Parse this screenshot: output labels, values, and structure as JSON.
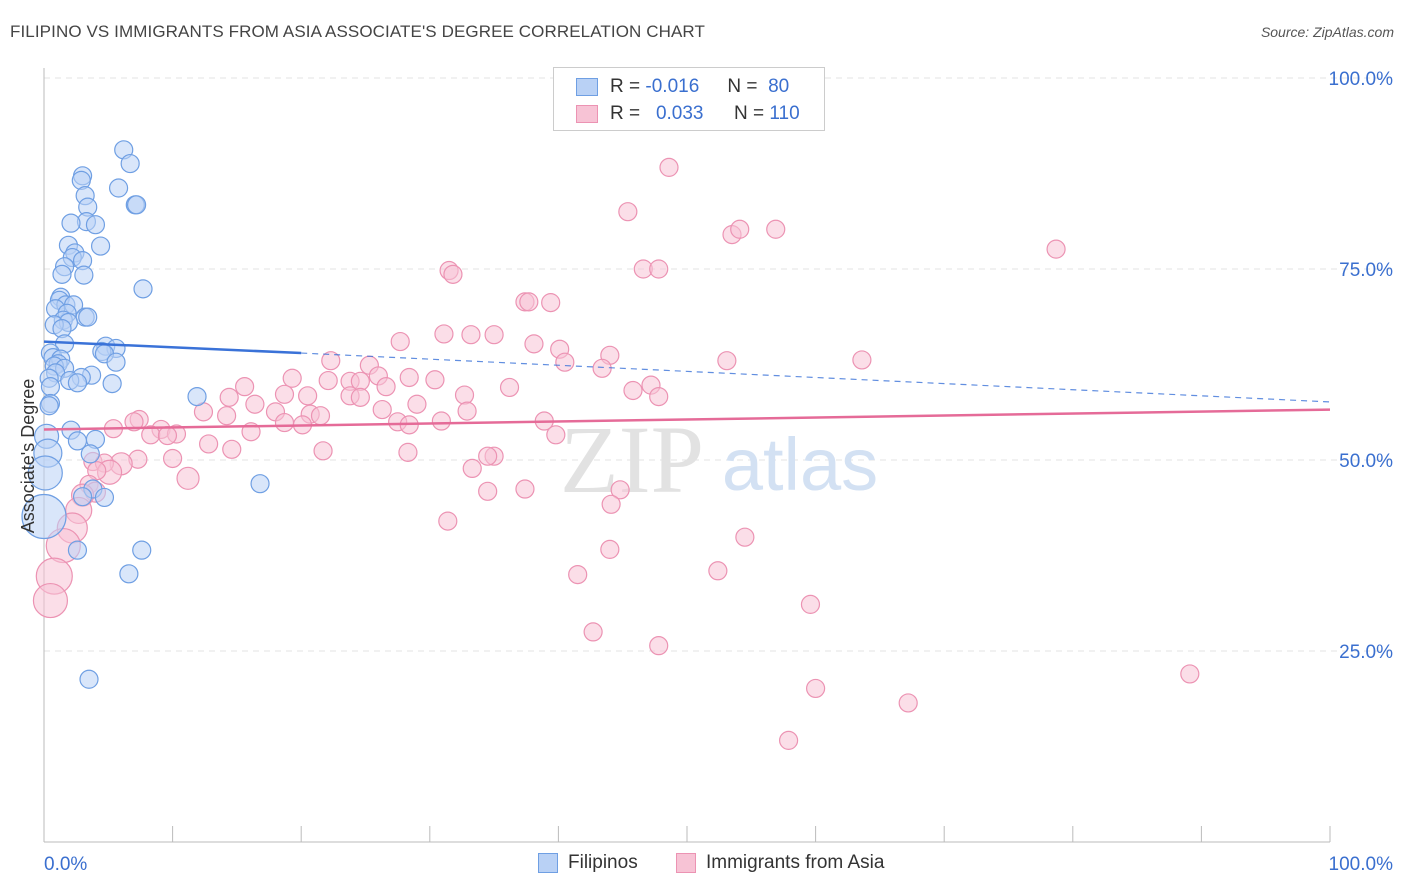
{
  "title": "FILIPINO VS IMMIGRANTS FROM ASIA ASSOCIATE'S DEGREE CORRELATION CHART",
  "source": "Source: ZipAtlas.com",
  "watermark": {
    "zip": "ZIP",
    "atlas": "atlas"
  },
  "legend": {
    "rows": [
      {
        "r_label": "R =",
        "r_value": "-0.016",
        "n_label": "N =",
        "n_value": "80"
      },
      {
        "r_label": "R =",
        "r_value": "0.033",
        "n_label": "N =",
        "n_value": "110"
      }
    ]
  },
  "colors": {
    "blue": "#3a72d8",
    "blue_fill": "#b9d1f5",
    "blue_stroke": "#6f9fe3",
    "pink": "#e56b98",
    "pink_fill": "#f7c3d5",
    "pink_stroke": "#ec93b3",
    "axis_text": "#3a6fcf",
    "grid": "#e3e3e3"
  },
  "chart_data": {
    "type": "scatter",
    "title": "FILIPINO VS IMMIGRANTS FROM ASIA ASSOCIATE'S DEGREE CORRELATION CHART",
    "xlabel": "",
    "ylabel": "Associate's Degree",
    "xlim": [
      0,
      100
    ],
    "ylim": [
      0,
      100
    ],
    "x_tick_labels": [
      "0.0%",
      "100.0%"
    ],
    "y_tick_labels": [
      "25.0%",
      "50.0%",
      "75.0%",
      "100.0%"
    ],
    "y_ticks": [
      25,
      50,
      75,
      100
    ],
    "series": [
      {
        "name": "Filipinos",
        "color": "#3a72d8",
        "trend": {
          "x0": 0,
          "y0": 65.5,
          "x1": 20,
          "y1": 64.0,
          "dash_to_x": 100,
          "dash_to_y": 57.6
        },
        "points": [
          [
            6.2,
            90.6
          ],
          [
            6.7,
            88.8
          ],
          [
            3.0,
            87.2
          ],
          [
            2.9,
            86.6
          ],
          [
            5.8,
            85.6
          ],
          [
            3.2,
            84.6
          ],
          [
            7.1,
            83.4
          ],
          [
            7.2,
            83.4
          ],
          [
            3.4,
            83.1
          ],
          [
            3.3,
            81.2
          ],
          [
            2.1,
            81.0
          ],
          [
            4.0,
            80.8
          ],
          [
            1.9,
            78.1
          ],
          [
            4.4,
            78.0
          ],
          [
            2.4,
            77.1
          ],
          [
            2.2,
            76.5
          ],
          [
            3.0,
            76.1
          ],
          [
            1.6,
            75.3
          ],
          [
            1.4,
            74.3
          ],
          [
            3.1,
            74.2
          ],
          [
            7.7,
            72.4
          ],
          [
            1.3,
            71.3
          ],
          [
            1.2,
            70.9
          ],
          [
            1.7,
            70.3
          ],
          [
            2.3,
            70.3
          ],
          [
            0.9,
            69.8
          ],
          [
            1.8,
            69.2
          ],
          [
            3.2,
            68.7
          ],
          [
            3.4,
            68.7
          ],
          [
            1.5,
            68.3
          ],
          [
            1.9,
            68.0
          ],
          [
            0.8,
            67.7
          ],
          [
            1.4,
            67.2
          ],
          [
            1.6,
            65.2
          ],
          [
            4.8,
            64.9
          ],
          [
            5.6,
            64.6
          ],
          [
            4.5,
            64.2
          ],
          [
            0.5,
            64.0
          ],
          [
            4.7,
            63.9
          ],
          [
            0.7,
            63.4
          ],
          [
            1.3,
            63.2
          ],
          [
            1.1,
            62.6
          ],
          [
            0.8,
            62.3
          ],
          [
            1.6,
            62.0
          ],
          [
            5.6,
            62.8
          ],
          [
            0.9,
            61.4
          ],
          [
            0.4,
            60.7
          ],
          [
            3.7,
            61.1
          ],
          [
            2.9,
            60.8
          ],
          [
            2.0,
            60.4
          ],
          [
            2.6,
            60.1
          ],
          [
            5.3,
            60.0
          ],
          [
            0.5,
            59.6
          ],
          [
            11.9,
            58.3
          ],
          [
            0.5,
            57.4
          ],
          [
            0.4,
            57.1
          ],
          [
            2.1,
            53.9
          ],
          [
            0.2,
            53.1
          ],
          [
            4.0,
            52.7
          ],
          [
            2.6,
            52.5
          ],
          [
            0.3,
            50.9
          ],
          [
            3.6,
            50.8
          ],
          [
            0.1,
            48.3
          ],
          [
            3.8,
            46.2
          ],
          [
            16.8,
            46.9
          ],
          [
            3.0,
            45.2
          ],
          [
            4.7,
            45.1
          ],
          [
            0.0,
            42.6
          ],
          [
            2.6,
            38.2
          ],
          [
            7.6,
            38.2
          ],
          [
            6.6,
            35.1
          ],
          [
            3.5,
            21.3
          ]
        ],
        "sizes": [
          18,
          18,
          18,
          18,
          18,
          18,
          18,
          18,
          18,
          18,
          18,
          18,
          18,
          18,
          18,
          18,
          18,
          18,
          18,
          18,
          18,
          18,
          18,
          18,
          18,
          18,
          18,
          18,
          18,
          18,
          18,
          18,
          18,
          18,
          18,
          18,
          18,
          18,
          18,
          18,
          18,
          18,
          18,
          18,
          18,
          18,
          18,
          18,
          18,
          18,
          18,
          18,
          18,
          18,
          18,
          18,
          18,
          24,
          18,
          18,
          28,
          18,
          34,
          18,
          18,
          18,
          18,
          44,
          18,
          18,
          18,
          18
        ]
      },
      {
        "name": "Immigrants from Asia",
        "color": "#e56b98",
        "trend": {
          "x0": 0,
          "y0": 54.0,
          "x1": 100,
          "y1": 56.6
        },
        "points": [
          [
            48.6,
            88.3
          ],
          [
            45.4,
            82.5
          ],
          [
            53.5,
            79.5
          ],
          [
            56.9,
            80.2
          ],
          [
            54.1,
            80.2
          ],
          [
            78.7,
            77.6
          ],
          [
            31.5,
            74.8
          ],
          [
            31.8,
            74.3
          ],
          [
            46.6,
            75.0
          ],
          [
            47.8,
            75.0
          ],
          [
            37.4,
            70.7
          ],
          [
            37.7,
            70.7
          ],
          [
            39.4,
            70.6
          ],
          [
            31.1,
            66.5
          ],
          [
            33.2,
            66.4
          ],
          [
            35.0,
            66.4
          ],
          [
            27.7,
            65.5
          ],
          [
            38.1,
            65.2
          ],
          [
            40.1,
            64.5
          ],
          [
            44.0,
            63.7
          ],
          [
            53.1,
            63.0
          ],
          [
            63.6,
            63.1
          ],
          [
            22.3,
            63.0
          ],
          [
            40.5,
            62.8
          ],
          [
            25.3,
            62.4
          ],
          [
            43.4,
            62.0
          ],
          [
            26.0,
            61.0
          ],
          [
            19.3,
            60.7
          ],
          [
            28.4,
            60.8
          ],
          [
            30.4,
            60.5
          ],
          [
            22.1,
            60.4
          ],
          [
            23.8,
            60.3
          ],
          [
            24.6,
            60.3
          ],
          [
            26.6,
            59.6
          ],
          [
            36.2,
            59.5
          ],
          [
            47.2,
            59.8
          ],
          [
            15.6,
            59.6
          ],
          [
            20.5,
            58.4
          ],
          [
            23.8,
            58.4
          ],
          [
            32.7,
            58.5
          ],
          [
            45.8,
            59.1
          ],
          [
            47.8,
            58.3
          ],
          [
            18.7,
            58.6
          ],
          [
            14.4,
            58.2
          ],
          [
            24.6,
            58.2
          ],
          [
            16.4,
            57.3
          ],
          [
            29.0,
            57.3
          ],
          [
            18.0,
            56.3
          ],
          [
            20.7,
            56.0
          ],
          [
            26.3,
            56.6
          ],
          [
            12.4,
            56.3
          ],
          [
            32.9,
            56.4
          ],
          [
            14.2,
            55.8
          ],
          [
            21.5,
            55.8
          ],
          [
            7.4,
            55.3
          ],
          [
            7.0,
            55.0
          ],
          [
            20.1,
            54.6
          ],
          [
            30.9,
            55.1
          ],
          [
            27.5,
            55.0
          ],
          [
            38.9,
            55.1
          ],
          [
            18.7,
            54.9
          ],
          [
            28.4,
            54.6
          ],
          [
            9.1,
            54.0
          ],
          [
            5.4,
            54.1
          ],
          [
            16.1,
            53.7
          ],
          [
            10.3,
            53.4
          ],
          [
            8.3,
            53.3
          ],
          [
            9.6,
            53.2
          ],
          [
            39.8,
            53.3
          ],
          [
            12.8,
            52.1
          ],
          [
            14.6,
            51.4
          ],
          [
            21.7,
            51.2
          ],
          [
            28.3,
            51.0
          ],
          [
            35.0,
            50.5
          ],
          [
            34.5,
            50.5
          ],
          [
            7.3,
            50.1
          ],
          [
            10.0,
            50.2
          ],
          [
            3.8,
            49.8
          ],
          [
            6.0,
            49.5
          ],
          [
            4.7,
            49.6
          ],
          [
            5.1,
            48.4
          ],
          [
            33.3,
            48.9
          ],
          [
            4.1,
            48.6
          ],
          [
            11.2,
            47.6
          ],
          [
            3.5,
            46.8
          ],
          [
            37.4,
            46.2
          ],
          [
            34.5,
            45.9
          ],
          [
            44.8,
            46.1
          ],
          [
            4.0,
            45.8
          ],
          [
            3.0,
            45.4
          ],
          [
            44.1,
            44.2
          ],
          [
            2.7,
            43.4
          ],
          [
            31.4,
            42.0
          ],
          [
            2.2,
            41.1
          ],
          [
            54.5,
            39.9
          ],
          [
            44.0,
            38.3
          ],
          [
            1.5,
            38.8
          ],
          [
            52.4,
            35.5
          ],
          [
            41.5,
            35.0
          ],
          [
            0.8,
            34.8
          ],
          [
            0.5,
            31.6
          ],
          [
            59.6,
            31.1
          ],
          [
            42.7,
            27.5
          ],
          [
            47.8,
            25.7
          ],
          [
            89.1,
            22.0
          ],
          [
            60.0,
            20.1
          ],
          [
            67.2,
            18.2
          ],
          [
            57.9,
            13.3
          ]
        ],
        "sizes": [
          18,
          18,
          18,
          18,
          18,
          18,
          18,
          18,
          18,
          18,
          18,
          18,
          18,
          18,
          18,
          18,
          18,
          18,
          18,
          18,
          18,
          18,
          18,
          18,
          18,
          18,
          18,
          18,
          18,
          18,
          18,
          18,
          18,
          18,
          18,
          18,
          18,
          18,
          18,
          18,
          18,
          18,
          18,
          18,
          18,
          18,
          18,
          18,
          18,
          18,
          18,
          18,
          18,
          18,
          18,
          18,
          18,
          18,
          18,
          18,
          18,
          18,
          18,
          18,
          18,
          18,
          18,
          18,
          18,
          18,
          18,
          18,
          18,
          18,
          18,
          18,
          18,
          18,
          22,
          18,
          24,
          18,
          18,
          22,
          18,
          18,
          18,
          18,
          20,
          22,
          18,
          26,
          18,
          30,
          18,
          18,
          34,
          18,
          18,
          36,
          34,
          18,
          18,
          18,
          18,
          18,
          18,
          18
        ]
      }
    ],
    "legend_position": "bottom"
  }
}
